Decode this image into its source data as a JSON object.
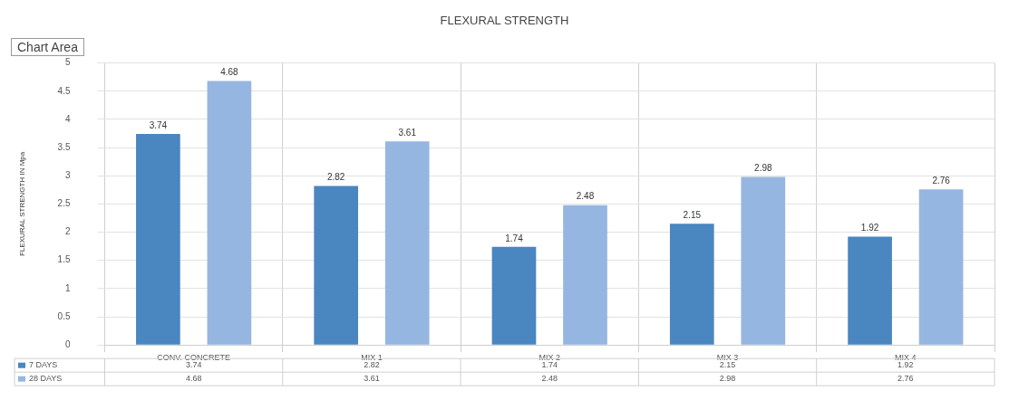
{
  "chart_data": {
    "type": "bar",
    "title": "FLEXURAL STRENGTH",
    "ylabel": "FLEXURAL STRENGTH IN Mpa",
    "categories": [
      "CONV. CONCRETE",
      "MIX 1",
      "MIX 2",
      "MIX 3",
      "MIX 4"
    ],
    "series": [
      {
        "name": "7 DAYS",
        "color": "#4a86c0",
        "values": [
          3.74,
          2.82,
          1.74,
          2.15,
          1.92
        ]
      },
      {
        "name": "28 DAYS",
        "color": "#95b6e0",
        "values": [
          4.68,
          3.61,
          2.48,
          2.98,
          2.76
        ]
      }
    ],
    "ylim": [
      0,
      5
    ],
    "yticks": [
      0,
      0.5,
      1,
      1.5,
      2,
      2.5,
      3,
      3.5,
      4,
      4.5,
      5
    ],
    "grid": true,
    "legend": "bottom",
    "data_labels": true,
    "annotations": [
      "Chart Area",
      "3.74",
      "2.82",
      "1.74",
      "2.15",
      "1.92",
      "4.68",
      "3.61",
      "2.48",
      "2.98",
      "2.76"
    ]
  }
}
